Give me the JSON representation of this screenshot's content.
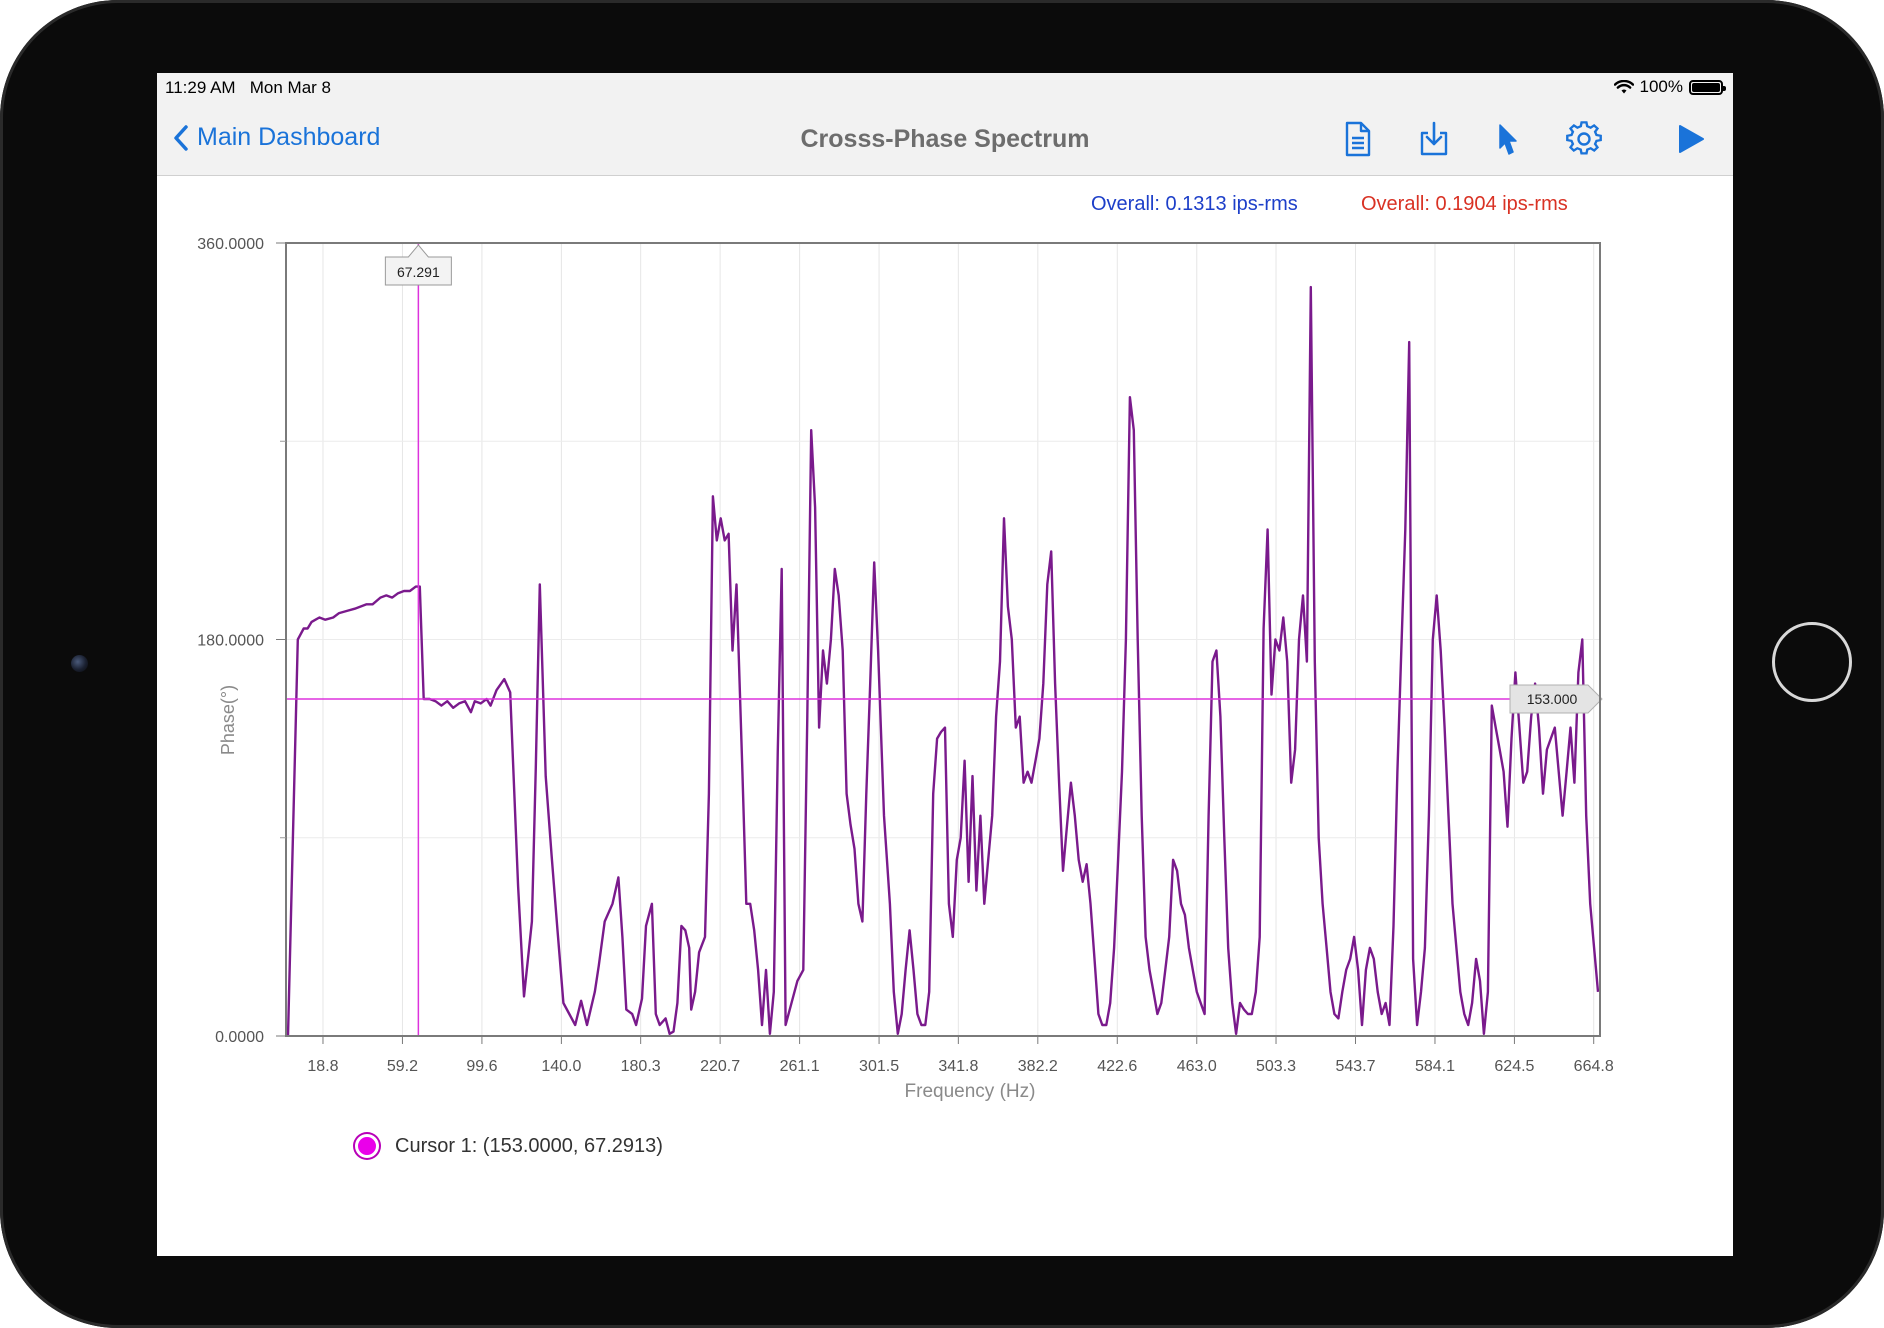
{
  "status": {
    "time": "11:29 AM",
    "date": "Mon Mar 8",
    "battery": "100%"
  },
  "nav": {
    "back_label": "Main Dashboard",
    "title": "Crosss-Phase Spectrum"
  },
  "toolbar": {
    "icons": [
      "document-icon",
      "download-icon",
      "cursor-icon",
      "gear-icon",
      "play-icon"
    ],
    "accent": "#1a73d9"
  },
  "overall": {
    "left": "Overall: 0.1313 ips-rms",
    "right": "Overall: 0.1904 ips-rms",
    "left_color": "#1d3fc9",
    "right_color": "#d93224"
  },
  "chart_data": {
    "type": "line",
    "xlabel": "Frequency (Hz)",
    "ylabel": "Phase(°)",
    "y_ticks": [
      "360.0000",
      "180.0000",
      "0.0000"
    ],
    "x_ticks": [
      "18.8",
      "59.2",
      "99.6",
      "140.0",
      "180.3",
      "220.7",
      "261.1",
      "301.5",
      "341.8",
      "382.2",
      "422.6",
      "463.0",
      "503.3",
      "543.7",
      "584.1",
      "624.5",
      "664.8"
    ],
    "xlim": [
      0,
      668
    ],
    "ylim": [
      0,
      360
    ],
    "grid": true,
    "line_color": "#7a1a8c",
    "series": [
      {
        "values": [
          [
            1,
            0
          ],
          [
            6,
            180
          ],
          [
            9,
            185
          ],
          [
            11,
            185
          ],
          [
            13,
            188
          ],
          [
            15,
            189
          ],
          [
            17,
            190
          ],
          [
            20,
            189
          ],
          [
            24,
            190
          ],
          [
            27,
            192
          ],
          [
            31,
            193
          ],
          [
            35,
            194
          ],
          [
            38,
            195
          ],
          [
            41,
            196
          ],
          [
            44,
            196
          ],
          [
            48,
            199
          ],
          [
            51,
            200
          ],
          [
            54,
            199
          ],
          [
            57,
            201
          ],
          [
            60,
            202
          ],
          [
            63,
            202
          ],
          [
            66,
            204
          ],
          [
            68,
            204
          ],
          [
            70,
            153
          ],
          [
            73,
            153
          ],
          [
            76,
            152
          ],
          [
            79,
            150
          ],
          [
            82,
            152
          ],
          [
            85,
            149
          ],
          [
            88,
            151
          ],
          [
            91,
            152
          ],
          [
            94,
            147
          ],
          [
            96,
            152
          ],
          [
            99,
            151
          ],
          [
            102,
            153
          ],
          [
            104,
            150
          ],
          [
            107,
            157
          ],
          [
            111,
            162
          ],
          [
            114,
            156
          ],
          [
            118,
            68
          ],
          [
            121,
            18
          ],
          [
            125,
            52
          ],
          [
            127,
            122
          ],
          [
            129,
            205
          ],
          [
            132,
            118
          ],
          [
            135,
            82
          ],
          [
            138,
            48
          ],
          [
            141,
            15
          ],
          [
            144,
            10
          ],
          [
            147,
            5
          ],
          [
            150,
            16
          ],
          [
            153,
            5
          ],
          [
            157,
            20
          ],
          [
            159,
            32
          ],
          [
            162,
            52
          ],
          [
            166,
            60
          ],
          [
            169,
            72
          ],
          [
            171,
            45
          ],
          [
            173,
            12
          ],
          [
            176,
            10
          ],
          [
            178,
            5
          ],
          [
            181,
            17
          ],
          [
            183,
            50
          ],
          [
            186,
            60
          ],
          [
            188,
            10
          ],
          [
            190,
            5
          ],
          [
            193,
            8
          ],
          [
            195,
            1
          ],
          [
            197,
            2
          ],
          [
            199,
            15
          ],
          [
            201,
            50
          ],
          [
            203,
            48
          ],
          [
            205,
            40
          ],
          [
            206,
            12
          ],
          [
            208,
            20
          ],
          [
            210,
            38
          ],
          [
            213,
            45
          ],
          [
            215,
            110
          ],
          [
            217,
            245
          ],
          [
            219,
            225
          ],
          [
            221,
            235
          ],
          [
            223,
            225
          ],
          [
            225,
            228
          ],
          [
            227,
            175
          ],
          [
            229,
            205
          ],
          [
            232,
            120
          ],
          [
            234,
            60
          ],
          [
            236,
            60
          ],
          [
            238,
            48
          ],
          [
            240,
            30
          ],
          [
            242,
            5
          ],
          [
            244,
            30
          ],
          [
            246,
            1
          ],
          [
            248,
            20
          ],
          [
            250,
            130
          ],
          [
            252,
            212
          ],
          [
            254,
            5
          ],
          [
            257,
            15
          ],
          [
            260,
            25
          ],
          [
            263,
            30
          ],
          [
            265,
            145
          ],
          [
            267,
            275
          ],
          [
            269,
            240
          ],
          [
            271,
            140
          ],
          [
            273,
            175
          ],
          [
            275,
            160
          ],
          [
            277,
            180
          ],
          [
            279,
            212
          ],
          [
            281,
            200
          ],
          [
            283,
            175
          ],
          [
            285,
            110
          ],
          [
            287,
            96
          ],
          [
            289,
            85
          ],
          [
            291,
            60
          ],
          [
            293,
            52
          ],
          [
            295,
            110
          ],
          [
            297,
            160
          ],
          [
            299,
            215
          ],
          [
            301,
            175
          ],
          [
            304,
            100
          ],
          [
            307,
            60
          ],
          [
            309,
            20
          ],
          [
            311,
            1
          ],
          [
            313,
            10
          ],
          [
            315,
            30
          ],
          [
            317,
            48
          ],
          [
            319,
            30
          ],
          [
            321,
            10
          ],
          [
            323,
            5
          ],
          [
            325,
            5
          ],
          [
            327,
            20
          ],
          [
            329,
            110
          ],
          [
            331,
            135
          ],
          [
            333,
            138
          ],
          [
            335,
            140
          ],
          [
            337,
            60
          ],
          [
            339,
            45
          ],
          [
            341,
            80
          ],
          [
            343,
            90
          ],
          [
            345,
            125
          ],
          [
            347,
            70
          ],
          [
            349,
            118
          ],
          [
            351,
            66
          ],
          [
            353,
            100
          ],
          [
            355,
            60
          ],
          [
            357,
            80
          ],
          [
            359,
            100
          ],
          [
            361,
            145
          ],
          [
            363,
            170
          ],
          [
            365,
            235
          ],
          [
            367,
            195
          ],
          [
            369,
            180
          ],
          [
            371,
            140
          ],
          [
            373,
            145
          ],
          [
            375,
            115
          ],
          [
            377,
            120
          ],
          [
            379,
            115
          ],
          [
            381,
            125
          ],
          [
            383,
            135
          ],
          [
            385,
            160
          ],
          [
            387,
            205
          ],
          [
            389,
            220
          ],
          [
            391,
            160
          ],
          [
            393,
            115
          ],
          [
            395,
            75
          ],
          [
            397,
            95
          ],
          [
            399,
            115
          ],
          [
            401,
            100
          ],
          [
            403,
            80
          ],
          [
            405,
            70
          ],
          [
            407,
            78
          ],
          [
            409,
            60
          ],
          [
            411,
            35
          ],
          [
            413,
            10
          ],
          [
            415,
            5
          ],
          [
            417,
            5
          ],
          [
            419,
            15
          ],
          [
            421,
            40
          ],
          [
            423,
            80
          ],
          [
            425,
            120
          ],
          [
            427,
            180
          ],
          [
            429,
            290
          ],
          [
            431,
            275
          ],
          [
            433,
            180
          ],
          [
            435,
            100
          ],
          [
            437,
            45
          ],
          [
            439,
            30
          ],
          [
            441,
            20
          ],
          [
            443,
            10
          ],
          [
            445,
            15
          ],
          [
            447,
            30
          ],
          [
            449,
            45
          ],
          [
            451,
            80
          ],
          [
            453,
            75
          ],
          [
            455,
            60
          ],
          [
            457,
            55
          ],
          [
            459,
            40
          ],
          [
            461,
            30
          ],
          [
            463,
            20
          ],
          [
            465,
            15
          ],
          [
            467,
            10
          ],
          [
            469,
            100
          ],
          [
            471,
            170
          ],
          [
            473,
            175
          ],
          [
            475,
            145
          ],
          [
            477,
            90
          ],
          [
            479,
            40
          ],
          [
            481,
            15
          ],
          [
            483,
            1
          ],
          [
            485,
            15
          ],
          [
            487,
            12
          ],
          [
            489,
            10
          ],
          [
            491,
            10
          ],
          [
            493,
            20
          ],
          [
            495,
            45
          ],
          [
            497,
            185
          ],
          [
            499,
            230
          ],
          [
            501,
            155
          ],
          [
            503,
            180
          ],
          [
            505,
            175
          ],
          [
            507,
            190
          ],
          [
            509,
            170
          ],
          [
            511,
            115
          ],
          [
            513,
            130
          ],
          [
            515,
            180
          ],
          [
            517,
            200
          ],
          [
            519,
            170
          ],
          [
            521,
            340
          ],
          [
            523,
            170
          ],
          [
            525,
            90
          ],
          [
            527,
            60
          ],
          [
            529,
            40
          ],
          [
            531,
            20
          ],
          [
            533,
            10
          ],
          [
            535,
            8
          ],
          [
            537,
            20
          ],
          [
            539,
            30
          ],
          [
            541,
            35
          ],
          [
            543,
            45
          ],
          [
            545,
            30
          ],
          [
            547,
            5
          ],
          [
            549,
            30
          ],
          [
            551,
            40
          ],
          [
            553,
            35
          ],
          [
            555,
            20
          ],
          [
            557,
            10
          ],
          [
            559,
            15
          ],
          [
            561,
            5
          ],
          [
            563,
            50
          ],
          [
            565,
            120
          ],
          [
            567,
            175
          ],
          [
            569,
            230
          ],
          [
            571,
            315
          ],
          [
            573,
            35
          ],
          [
            575,
            5
          ],
          [
            577,
            20
          ],
          [
            579,
            40
          ],
          [
            581,
            100
          ],
          [
            583,
            180
          ],
          [
            585,
            200
          ],
          [
            587,
            175
          ],
          [
            589,
            140
          ],
          [
            591,
            100
          ],
          [
            593,
            60
          ],
          [
            595,
            40
          ],
          [
            597,
            20
          ],
          [
            599,
            10
          ],
          [
            601,
            5
          ],
          [
            603,
            15
          ],
          [
            605,
            35
          ],
          [
            607,
            25
          ],
          [
            609,
            1
          ],
          [
            611,
            20
          ],
          [
            613,
            150
          ],
          [
            615,
            140
          ],
          [
            617,
            130
          ],
          [
            619,
            120
          ],
          [
            621,
            95
          ],
          [
            623,
            135
          ],
          [
            625,
            165
          ],
          [
            627,
            140
          ],
          [
            629,
            115
          ],
          [
            631,
            120
          ],
          [
            633,
            145
          ],
          [
            635,
            160
          ],
          [
            637,
            140
          ],
          [
            639,
            110
          ],
          [
            641,
            130
          ],
          [
            643,
            135
          ],
          [
            645,
            140
          ],
          [
            647,
            120
          ],
          [
            649,
            100
          ],
          [
            651,
            120
          ],
          [
            653,
            140
          ],
          [
            655,
            115
          ],
          [
            657,
            165
          ],
          [
            659,
            180
          ],
          [
            661,
            100
          ],
          [
            663,
            60
          ],
          [
            665,
            40
          ],
          [
            667,
            20
          ]
        ]
      }
    ],
    "cursor": {
      "x": 67.291,
      "y": 153.0,
      "x_label": "67.291",
      "y_label": "153.000",
      "color": "#dd33dd"
    }
  },
  "legend": {
    "marker_color": "#ea00ea",
    "label": "Cursor 1: (153.0000, 67.2913)"
  }
}
